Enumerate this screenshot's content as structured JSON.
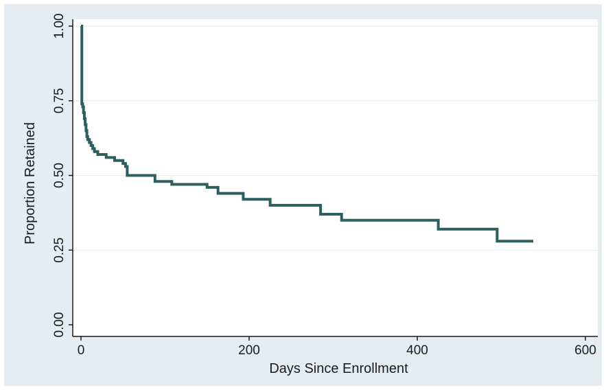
{
  "chart_data": {
    "type": "line",
    "title": "",
    "xlabel": "Days Since Enrollment",
    "ylabel": "Proportion Retained",
    "xlim": [
      0,
      600
    ],
    "ylim": [
      0,
      1
    ],
    "x_ticks": [
      0,
      200,
      400,
      600
    ],
    "x_tick_labels": [
      "0",
      "200",
      "400",
      "600"
    ],
    "y_ticks": [
      0,
      0.25,
      0.5,
      0.75,
      1
    ],
    "y_tick_labels": [
      "0.00",
      "0.25",
      "0.50",
      "0.75",
      "1.00"
    ],
    "grid": true,
    "step": true,
    "colors": {
      "line": "#2c5f5d",
      "plot_background": "#ffffff",
      "outer_background": "#e6edf2",
      "grid": "#e2e8ec",
      "axis": "#1a1a1a"
    },
    "series": [
      {
        "x": [
          0,
          1,
          2,
          3,
          4,
          5,
          6,
          7,
          8,
          10,
          12,
          14,
          16,
          18,
          20,
          30,
          40,
          50,
          53,
          55,
          88,
          108,
          150,
          163,
          193,
          200,
          225,
          285,
          310,
          425,
          495,
          538
        ],
        "y": [
          1.0,
          0.74,
          0.73,
          0.71,
          0.69,
          0.67,
          0.65,
          0.63,
          0.62,
          0.61,
          0.6,
          0.59,
          0.58,
          0.58,
          0.57,
          0.56,
          0.55,
          0.54,
          0.53,
          0.5,
          0.48,
          0.47,
          0.46,
          0.44,
          0.42,
          0.42,
          0.4,
          0.37,
          0.35,
          0.32,
          0.28,
          0.28
        ]
      }
    ]
  }
}
